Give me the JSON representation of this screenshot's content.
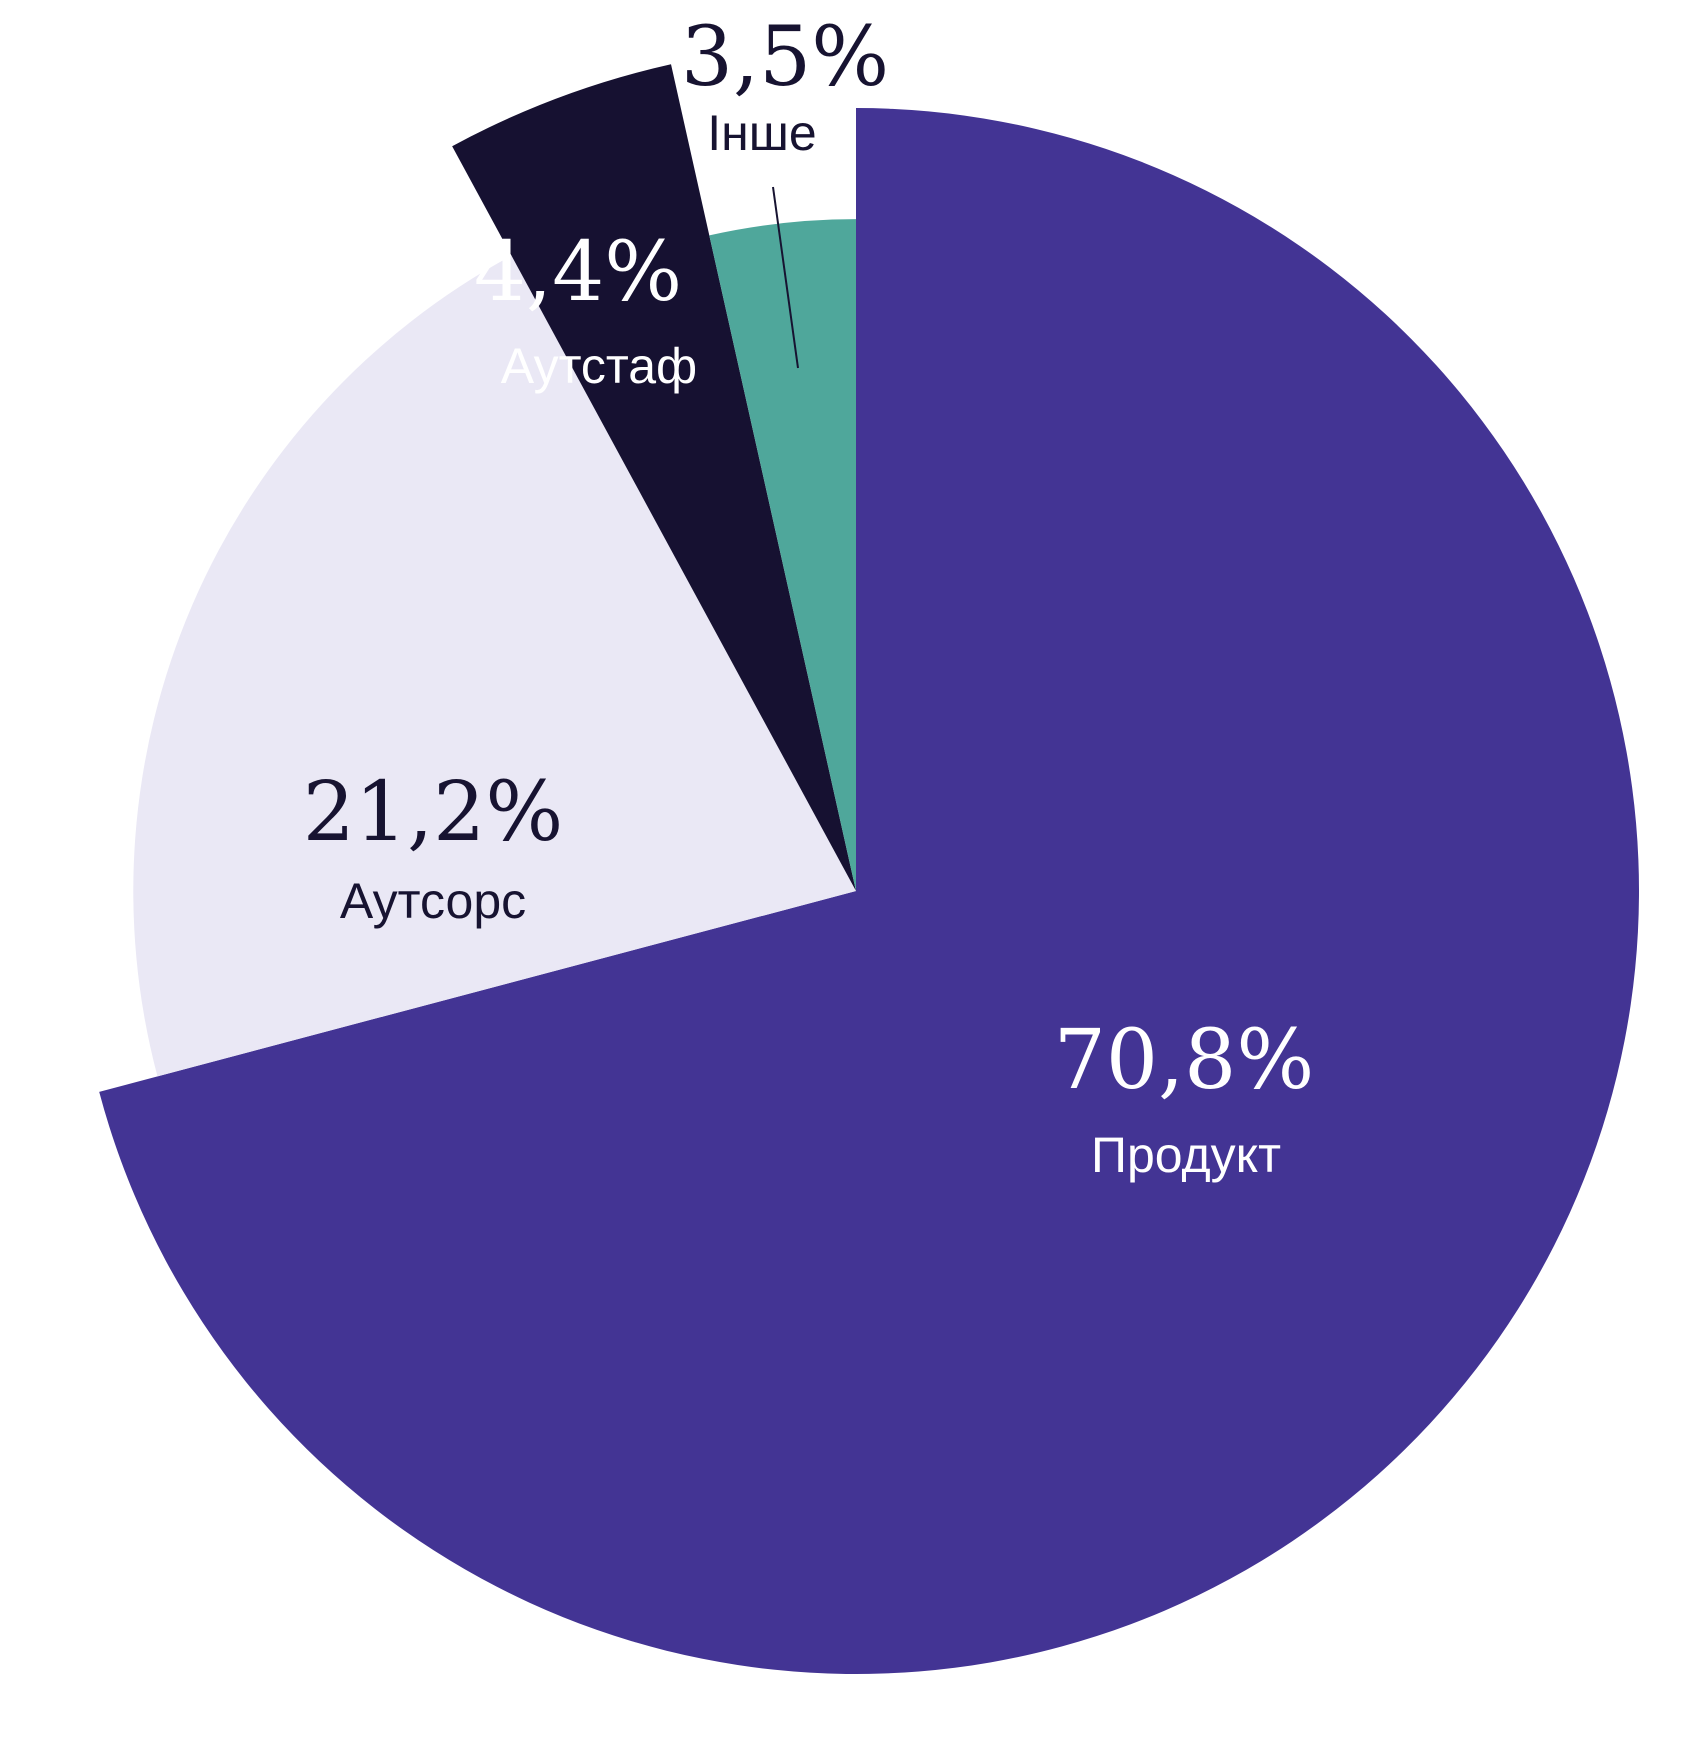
{
  "chart_data": {
    "type": "pie",
    "slices": [
      {
        "label": "Продукт",
        "value": 70.8,
        "value_label": "70,8%",
        "color": "#433494",
        "text_color": "#ffffff",
        "radius_scale": 1.0,
        "label_placement": "inside"
      },
      {
        "label": "Аутсорс",
        "value": 21.2,
        "value_label": "21,2%",
        "color": "#EAE8F5",
        "text_color": "#171331",
        "radius_scale": 0.923,
        "label_placement": "inside"
      },
      {
        "label": "Аутстаф",
        "value": 4.4,
        "value_label": "4,4%",
        "color": "#161131",
        "text_color": "#ffffff",
        "radius_scale": 1.082,
        "label_placement": "inside"
      },
      {
        "label": "Інше",
        "value": 3.5,
        "value_label": "3,5%",
        "color": "#4FA79B",
        "text_color": "#171331",
        "radius_scale": 0.858,
        "label_placement": "outside-leader"
      }
    ],
    "start_angle": "12 o'clock",
    "direction": "clockwise",
    "legend": "none",
    "title": ""
  }
}
